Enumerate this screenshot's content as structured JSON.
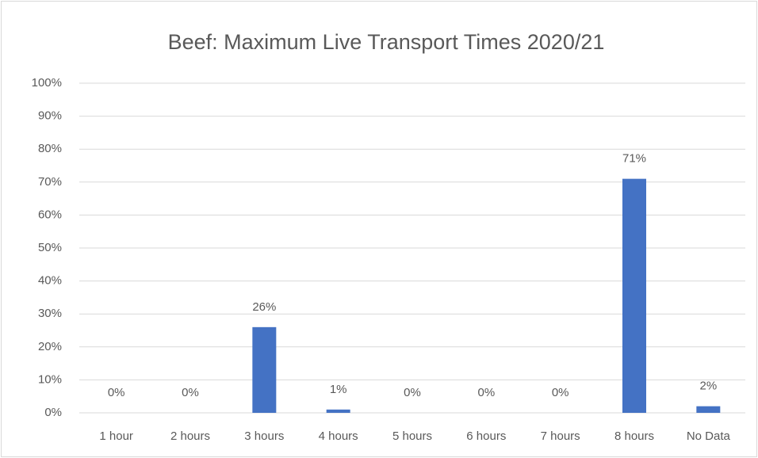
{
  "chart_data": {
    "type": "bar",
    "title": "Beef: Maximum Live Transport Times 2020/21",
    "categories": [
      "1 hour",
      "2 hours",
      "3 hours",
      "4 hours",
      "5 hours",
      "6 hours",
      "7 hours",
      "8 hours",
      "No Data"
    ],
    "values": [
      0,
      0,
      26,
      1,
      0,
      0,
      0,
      71,
      2
    ],
    "value_labels": [
      "0%",
      "0%",
      "26%",
      "1%",
      "0%",
      "0%",
      "0%",
      "71%",
      "2%"
    ],
    "color": "#4472c4",
    "ylim": [
      0,
      100
    ],
    "yticks": [
      {
        "value": 0,
        "label": "0%"
      },
      {
        "value": 10,
        "label": "10%"
      },
      {
        "value": 20,
        "label": "20%"
      },
      {
        "value": 30,
        "label": "30%"
      },
      {
        "value": 40,
        "label": "40%"
      },
      {
        "value": 50,
        "label": "50%"
      },
      {
        "value": 60,
        "label": "60%"
      },
      {
        "value": 70,
        "label": "70%"
      },
      {
        "value": 80,
        "label": "80%"
      },
      {
        "value": 90,
        "label": "90%"
      },
      {
        "value": 100,
        "label": "100%"
      }
    ],
    "grid": true
  }
}
